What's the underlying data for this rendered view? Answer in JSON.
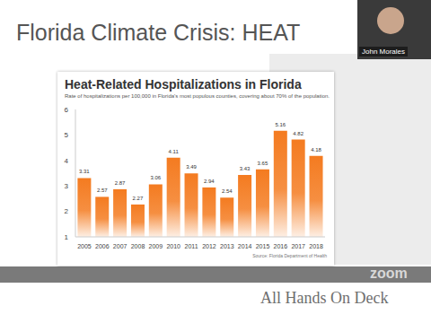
{
  "slide": {
    "title": "Florida Climate Crisis: HEAT",
    "speaker": "John Morales",
    "footer": "All Hands On Deck",
    "watermark": "zoom"
  },
  "chart_data": {
    "type": "bar",
    "title": "Heat-Related Hospitalizations in Florida",
    "subtitle": "Rate of hospitalizations per 100,000 in Florida's most populous counties, covering about 70% of the population.",
    "annotations": [
      "Source: Florida Department of Health"
    ],
    "categories": [
      "2005",
      "2006",
      "2007",
      "2008",
      "2009",
      "2010",
      "2011",
      "2012",
      "2013",
      "2014",
      "2015",
      "2016",
      "2017",
      "2018"
    ],
    "values": [
      3.31,
      2.57,
      2.87,
      2.27,
      3.06,
      4.11,
      3.49,
      2.94,
      2.54,
      3.43,
      3.65,
      5.16,
      4.82,
      4.18
    ],
    "color": "#f47b20",
    "ylim": [
      1,
      6
    ],
    "yticks": [
      1,
      2,
      3,
      4,
      5,
      6
    ],
    "grid": false,
    "data_labels": true
  }
}
